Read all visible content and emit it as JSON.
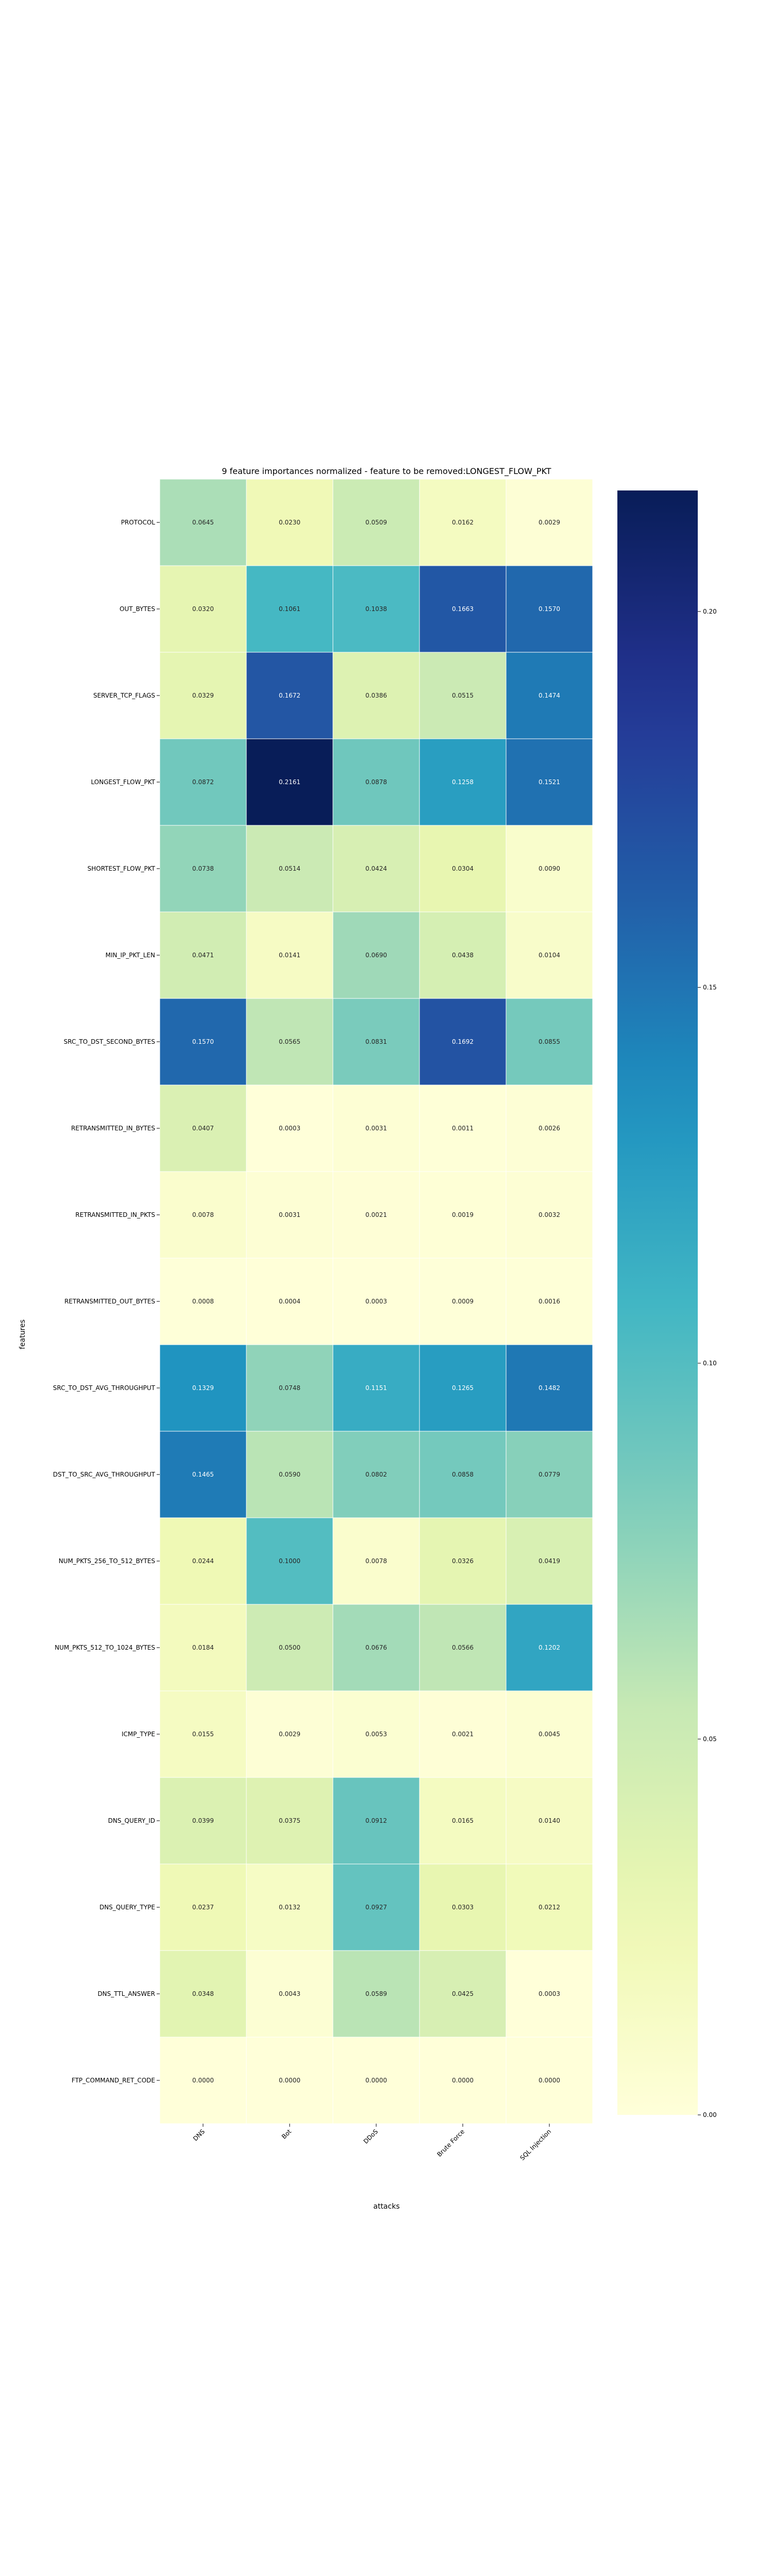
{
  "chart_data": {
    "type": "heatmap",
    "title": "9 feature importances normalized - feature to be removed:LONGEST_FLOW_PKT",
    "xlabel": "attacks",
    "ylabel": "features",
    "columns": [
      "DNS",
      "Bot",
      "DDoS",
      "Brute Force",
      "SQL Injection"
    ],
    "rows": [
      "PROTOCOL",
      "OUT_BYTES",
      "SERVER_TCP_FLAGS",
      "LONGEST_FLOW_PKT",
      "SHORTEST_FLOW_PKT",
      "MIN_IP_PKT_LEN",
      "SRC_TO_DST_SECOND_BYTES",
      "RETRANSMITTED_IN_BYTES",
      "RETRANSMITTED_IN_PKTS",
      "RETRANSMITTED_OUT_BYTES",
      "SRC_TO_DST_AVG_THROUGHPUT",
      "DST_TO_SRC_AVG_THROUGHPUT",
      "NUM_PKTS_256_TO_512_BYTES",
      "NUM_PKTS_512_TO_1024_BYTES",
      "ICMP_TYPE",
      "DNS_QUERY_ID",
      "DNS_QUERY_TYPE",
      "DNS_TTL_ANSWER",
      "FTP_COMMAND_RET_CODE"
    ],
    "values": [
      [
        "0.0645",
        "0.0230",
        "0.0509",
        "0.0162",
        "0.0029"
      ],
      [
        "0.0320",
        "0.1061",
        "0.1038",
        "0.1663",
        "0.1570"
      ],
      [
        "0.0329",
        "0.1672",
        "0.0386",
        "0.0515",
        "0.1474"
      ],
      [
        "0.0872",
        "0.2161",
        "0.0878",
        "0.1258",
        "0.1521"
      ],
      [
        "0.0738",
        "0.0514",
        "0.0424",
        "0.0304",
        "0.0090"
      ],
      [
        "0.0471",
        "0.0141",
        "0.0690",
        "0.0438",
        "0.0104"
      ],
      [
        "0.1570",
        "0.0565",
        "0.0831",
        "0.1692",
        "0.0855"
      ],
      [
        "0.0407",
        "0.0003",
        "0.0031",
        "0.0011",
        "0.0026"
      ],
      [
        "0.0078",
        "0.0031",
        "0.0021",
        "0.0019",
        "0.0032"
      ],
      [
        "0.0008",
        "0.0004",
        "0.0003",
        "0.0009",
        "0.0016"
      ],
      [
        "0.1329",
        "0.0748",
        "0.1151",
        "0.1265",
        "0.1482"
      ],
      [
        "0.1465",
        "0.0590",
        "0.0802",
        "0.0858",
        "0.0779"
      ],
      [
        "0.0244",
        "0.1000",
        "0.0078",
        "0.0326",
        "0.0419"
      ],
      [
        "0.0184",
        "0.0500",
        "0.0676",
        "0.0566",
        "0.1202"
      ],
      [
        "0.0155",
        "0.0029",
        "0.0053",
        "0.0021",
        "0.0045"
      ],
      [
        "0.0399",
        "0.0375",
        "0.0912",
        "0.0165",
        "0.0140"
      ],
      [
        "0.0237",
        "0.0132",
        "0.0927",
        "0.0303",
        "0.0212"
      ],
      [
        "0.0348",
        "0.0043",
        "0.0589",
        "0.0425",
        "0.0003"
      ],
      [
        "0.0000",
        "0.0000",
        "0.0000",
        "0.0000",
        "0.0000"
      ]
    ],
    "colormap": "YlGnBu",
    "colorbar": {
      "range": [
        0,
        0.2161
      ],
      "ticks": [
        "0.00",
        "0.05",
        "0.10",
        "0.15",
        "0.20"
      ]
    }
  }
}
